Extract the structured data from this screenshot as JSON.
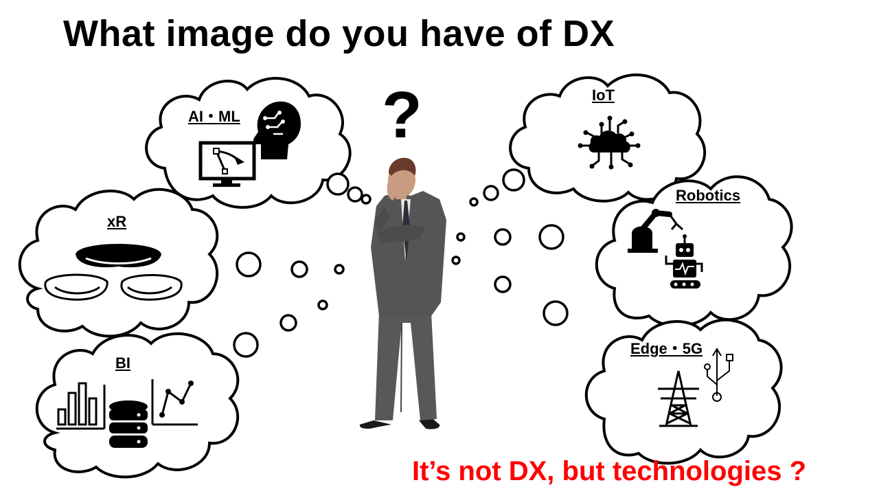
{
  "title": "What image do you have of DX",
  "bubbles": {
    "ai_ml": "AI・ML",
    "xr": "xR",
    "bi": "BI",
    "iot": "IoT",
    "robotics": "Robotics",
    "edge_5g": "Edge・5G"
  },
  "question_mark": "?",
  "caption": "It’s not DX, but technologies ?",
  "colors": {
    "caption": "#ff0000",
    "ink": "#000000"
  }
}
